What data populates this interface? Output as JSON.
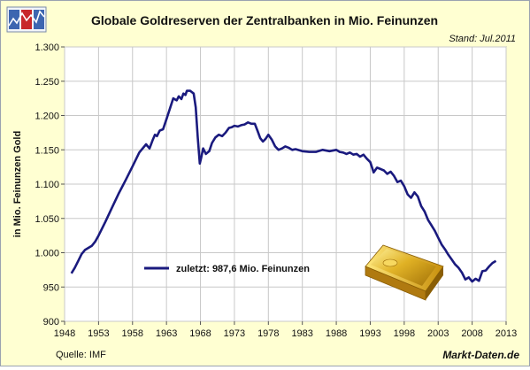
{
  "chart_data": {
    "type": "line",
    "title": "Globale Goldreserven der Zentralbanken in Mio. Feinunzen",
    "stand": "Stand: Jul.2011",
    "ylabel": "in Mio. Feinunzen Gold",
    "xlabel": "",
    "source": "Quelle: IMF",
    "brand": "Markt-Daten.de",
    "legend_label": "zuletzt: 987,6 Mio. Feinunzen",
    "ylim": [
      900,
      1300
    ],
    "xlim": [
      1948,
      2013
    ],
    "y_ticks": [
      900,
      950,
      1000,
      1050,
      1100,
      1150,
      1200,
      1250,
      1300
    ],
    "y_tick_labels": [
      "900",
      "950",
      "1.000",
      "1.050",
      "1.100",
      "1.150",
      "1.200",
      "1.250",
      "1.300"
    ],
    "x_ticks": [
      1948,
      1953,
      1958,
      1963,
      1968,
      1973,
      1978,
      1983,
      1988,
      1993,
      1998,
      2003,
      2008,
      2013
    ],
    "x_tick_labels": [
      "1948",
      "1953",
      "1958",
      "1963",
      "1968",
      "1973",
      "1978",
      "1983",
      "1988",
      "1993",
      "1998",
      "2003",
      "2008",
      "2013"
    ],
    "grid": true,
    "legend_position": "lower-left",
    "series_color": "#1a1a7e",
    "series": [
      {
        "name": "",
        "x": [
          1949.0,
          1949.5,
          1950.0,
          1950.5,
          1951.0,
          1952.0,
          1952.5,
          1953.0,
          1953.5,
          1954.0,
          1955.0,
          1956.0,
          1957.0,
          1958.0,
          1959.0,
          1960.0,
          1960.5,
          1961.0,
          1961.3,
          1961.6,
          1962.0,
          1962.5,
          1963.0,
          1963.5,
          1964.0,
          1964.5,
          1964.8,
          1965.2,
          1965.5,
          1965.8,
          1966.0,
          1966.5,
          1967.0,
          1967.3,
          1967.6,
          1967.9,
          1968.1,
          1968.4,
          1968.8,
          1969.3,
          1969.7,
          1970.2,
          1970.7,
          1971.2,
          1971.7,
          1972.2,
          1972.6,
          1973.0,
          1973.5,
          1974.0,
          1974.5,
          1975.0,
          1975.5,
          1976.0,
          1976.4,
          1976.8,
          1977.2,
          1977.6,
          1978.0,
          1978.5,
          1979.0,
          1979.5,
          1980.0,
          1980.5,
          1981.0,
          1981.5,
          1982.0,
          1983.0,
          1984.0,
          1985.0,
          1986.0,
          1987.0,
          1988.0,
          1988.5,
          1989.0,
          1989.5,
          1990.0,
          1990.5,
          1991.0,
          1991.5,
          1992.0,
          1992.5,
          1993.0,
          1993.5,
          1994.0,
          1994.5,
          1995.0,
          1995.5,
          1996.0,
          1996.5,
          1997.0,
          1997.5,
          1998.0,
          1998.5,
          1999.0,
          1999.5,
          2000.0,
          2000.5,
          2001.0,
          2001.5,
          2002.0,
          2002.5,
          2003.0,
          2003.5,
          2004.0,
          2004.5,
          2005.0,
          2005.5,
          2006.0,
          2006.5,
          2007.0,
          2007.5,
          2008.0,
          2008.5,
          2009.0,
          2009.5,
          2010.0,
          2010.5,
          2011.0,
          2011.5
        ],
        "values": [
          970,
          978,
          988,
          998,
          1004,
          1010,
          1016,
          1025,
          1035,
          1045,
          1066,
          1087,
          1106,
          1126,
          1146,
          1158,
          1152,
          1165,
          1172,
          1170,
          1178,
          1180,
          1195,
          1210,
          1225,
          1222,
          1228,
          1224,
          1232,
          1230,
          1236,
          1236,
          1232,
          1212,
          1168,
          1130,
          1138,
          1152,
          1144,
          1148,
          1160,
          1168,
          1172,
          1170,
          1175,
          1182,
          1183,
          1185,
          1184,
          1186,
          1187,
          1190,
          1188,
          1188,
          1178,
          1167,
          1162,
          1166,
          1172,
          1165,
          1155,
          1150,
          1152,
          1155,
          1153,
          1150,
          1151,
          1148,
          1147,
          1147,
          1150,
          1148,
          1150,
          1147,
          1146,
          1144,
          1146,
          1143,
          1144,
          1140,
          1143,
          1137,
          1132,
          1117,
          1124,
          1122,
          1120,
          1115,
          1118,
          1112,
          1103,
          1105,
          1097,
          1085,
          1080,
          1088,
          1082,
          1068,
          1060,
          1048,
          1040,
          1032,
          1022,
          1012,
          1005,
          997,
          990,
          983,
          978,
          971,
          961,
          964,
          958,
          962,
          959,
          973,
          974,
          980,
          985,
          988
        ]
      }
    ]
  }
}
